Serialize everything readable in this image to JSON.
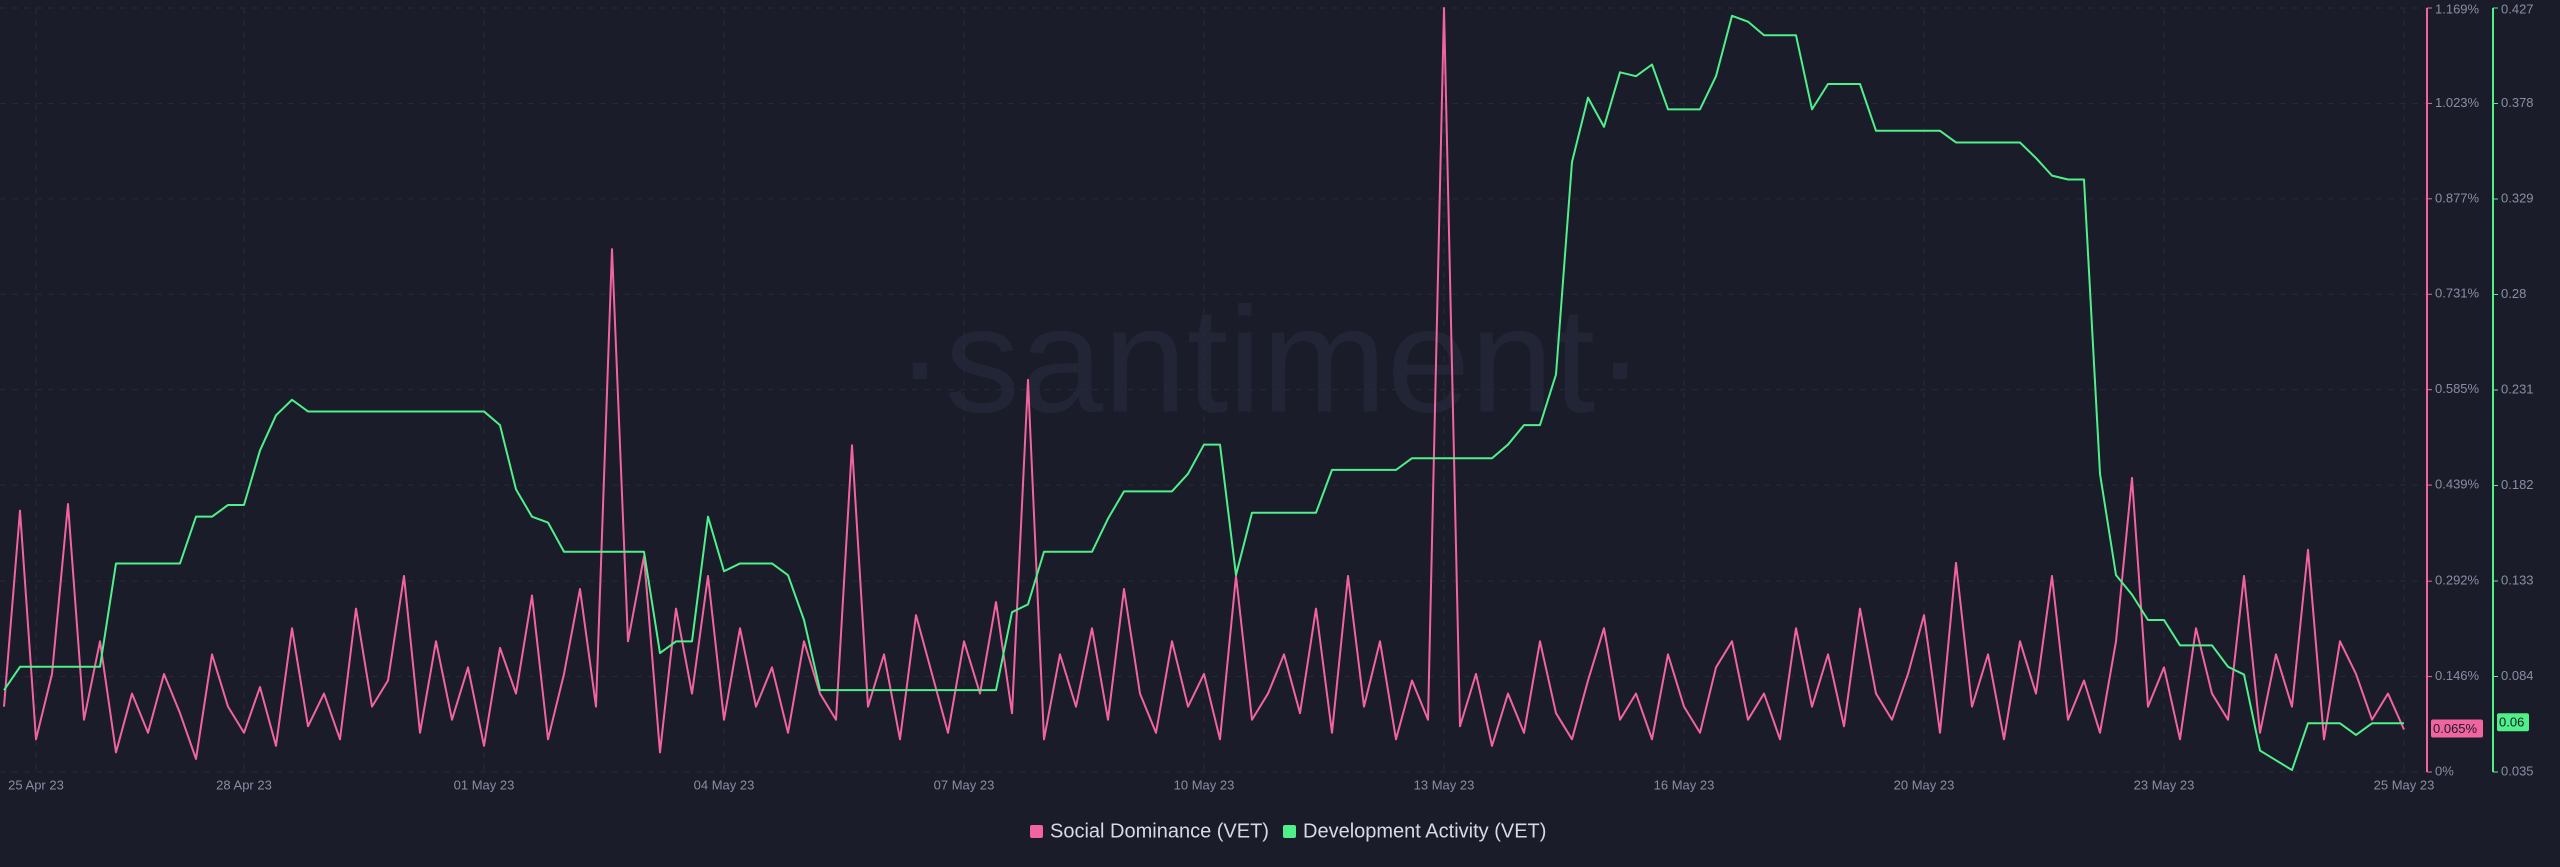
{
  "chart_data": {
    "type": "line",
    "watermark": "·santiment·",
    "categories": [
      null,
      null,
      "25 Apr 23",
      null,
      null,
      null,
      null,
      null,
      null,
      null,
      null,
      null,
      null,
      null,
      null,
      "28 Apr 23",
      null,
      null,
      null,
      null,
      null,
      null,
      null,
      null,
      null,
      null,
      null,
      null,
      null,
      null,
      "01 May 23",
      null,
      null,
      null,
      null,
      null,
      null,
      null,
      null,
      null,
      null,
      null,
      null,
      null,
      null,
      "04 May 23",
      null,
      null,
      null,
      null,
      null,
      null,
      null,
      null,
      null,
      null,
      null,
      null,
      null,
      null,
      "07 May 23",
      null,
      null,
      null,
      null,
      null,
      null,
      null,
      null,
      null,
      null,
      null,
      null,
      null,
      null,
      "10 May 23",
      null,
      null,
      null,
      null,
      null,
      null,
      null,
      null,
      null,
      null,
      null,
      null,
      null,
      null,
      "13 May 23",
      null,
      null,
      null,
      null,
      null,
      null,
      null,
      null,
      null,
      null,
      null,
      null,
      null,
      null,
      "16 May 23",
      null,
      null,
      null,
      null,
      null,
      null,
      null,
      null,
      null,
      null,
      null,
      null,
      null,
      null,
      "20 May 23",
      null,
      null,
      null,
      null,
      null,
      null,
      null,
      null,
      null,
      null,
      null,
      null,
      null,
      null,
      "23 May 23",
      null,
      null,
      null,
      null,
      null,
      null,
      null,
      null,
      null,
      null,
      null,
      null,
      null,
      null,
      "25 May 23"
    ],
    "series": [
      {
        "name": "Social Dominance (VET)",
        "color": "#f2649f",
        "current_label": "0.065%",
        "values": [
          0.1,
          0.4,
          0.05,
          0.15,
          0.41,
          0.08,
          0.2,
          0.03,
          0.12,
          0.06,
          0.15,
          0.09,
          0.02,
          0.18,
          0.1,
          0.06,
          0.13,
          0.04,
          0.22,
          0.07,
          0.12,
          0.05,
          0.25,
          0.1,
          0.14,
          0.3,
          0.06,
          0.2,
          0.08,
          0.16,
          0.04,
          0.19,
          0.12,
          0.27,
          0.05,
          0.15,
          0.28,
          0.1,
          0.8,
          0.2,
          0.33,
          0.03,
          0.25,
          0.12,
          0.3,
          0.08,
          0.22,
          0.1,
          0.16,
          0.06,
          0.2,
          0.12,
          0.08,
          0.5,
          0.1,
          0.18,
          0.05,
          0.24,
          0.15,
          0.06,
          0.2,
          0.12,
          0.26,
          0.09,
          0.6,
          0.05,
          0.18,
          0.1,
          0.22,
          0.08,
          0.28,
          0.12,
          0.06,
          0.2,
          0.1,
          0.15,
          0.05,
          0.3,
          0.08,
          0.12,
          0.18,
          0.09,
          0.25,
          0.06,
          0.3,
          0.1,
          0.2,
          0.05,
          0.14,
          0.08,
          1.169,
          0.07,
          0.15,
          0.04,
          0.12,
          0.06,
          0.2,
          0.09,
          0.05,
          0.14,
          0.22,
          0.08,
          0.12,
          0.05,
          0.18,
          0.1,
          0.06,
          0.16,
          0.2,
          0.08,
          0.12,
          0.05,
          0.22,
          0.1,
          0.18,
          0.07,
          0.25,
          0.12,
          0.08,
          0.15,
          0.24,
          0.06,
          0.32,
          0.1,
          0.18,
          0.05,
          0.2,
          0.12,
          0.3,
          0.08,
          0.14,
          0.06,
          0.2,
          0.45,
          0.1,
          0.16,
          0.05,
          0.22,
          0.12,
          0.08,
          0.3,
          0.06,
          0.18,
          0.1,
          0.34,
          0.05,
          0.2,
          0.15,
          0.08,
          0.12,
          0.065
        ]
      },
      {
        "name": "Development Activity (VET)",
        "color": "#4ff08a",
        "axis": "y2",
        "current_label": "0.06",
        "values": [
          0.077,
          0.089,
          0.089,
          0.089,
          0.089,
          0.089,
          0.089,
          0.142,
          0.142,
          0.142,
          0.142,
          0.142,
          0.166,
          0.166,
          0.172,
          0.172,
          0.2,
          0.218,
          0.226,
          0.22,
          0.22,
          0.22,
          0.22,
          0.22,
          0.22,
          0.22,
          0.22,
          0.22,
          0.22,
          0.22,
          0.22,
          0.213,
          0.18,
          0.166,
          0.163,
          0.148,
          0.148,
          0.148,
          0.148,
          0.148,
          0.148,
          0.096,
          0.102,
          0.102,
          0.166,
          0.138,
          0.142,
          0.142,
          0.142,
          0.136,
          0.113,
          0.077,
          0.077,
          0.077,
          0.077,
          0.077,
          0.077,
          0.077,
          0.077,
          0.077,
          0.077,
          0.077,
          0.077,
          0.117,
          0.121,
          0.148,
          0.148,
          0.148,
          0.148,
          0.165,
          0.179,
          0.179,
          0.179,
          0.179,
          0.188,
          0.203,
          0.203,
          0.136,
          0.168,
          0.168,
          0.168,
          0.168,
          0.168,
          0.19,
          0.19,
          0.19,
          0.19,
          0.19,
          0.196,
          0.196,
          0.196,
          0.196,
          0.196,
          0.196,
          0.203,
          0.213,
          0.213,
          0.239,
          0.348,
          0.381,
          0.366,
          0.394,
          0.392,
          0.398,
          0.375,
          0.375,
          0.375,
          0.392,
          0.423,
          0.42,
          0.413,
          0.413,
          0.413,
          0.375,
          0.388,
          0.388,
          0.388,
          0.364,
          0.364,
          0.364,
          0.364,
          0.364,
          0.358,
          0.358,
          0.358,
          0.358,
          0.358,
          0.35,
          0.341,
          0.339,
          0.339,
          0.188,
          0.136,
          0.126,
          0.113,
          0.113,
          0.1,
          0.1,
          0.1,
          0.089,
          0.085,
          0.046,
          0.041,
          0.036,
          0.06,
          0.06,
          0.06,
          0.054,
          0.06,
          0.06,
          0.06
        ]
      }
    ],
    "ylim": [
      0,
      1.169
    ],
    "yticks": [
      {
        "value": 0,
        "label": "0%"
      },
      {
        "value": 0.146,
        "label": "0.146%"
      },
      {
        "value": 0.292,
        "label": "0.292%"
      },
      {
        "value": 0.439,
        "label": "0.439%"
      },
      {
        "value": 0.585,
        "label": "0.585%"
      },
      {
        "value": 0.731,
        "label": "0.731%"
      },
      {
        "value": 0.877,
        "label": "0.877%"
      },
      {
        "value": 1.023,
        "label": "1.023%"
      },
      {
        "value": 1.169,
        "label": "1.169%"
      }
    ],
    "y2lim": [
      0.035,
      0.427
    ],
    "y2ticks": [
      0.035,
      0.084,
      0.133,
      0.182,
      0.231,
      0.28,
      0.329,
      0.378,
      0.427
    ],
    "grid": true,
    "legend": "bottom"
  }
}
